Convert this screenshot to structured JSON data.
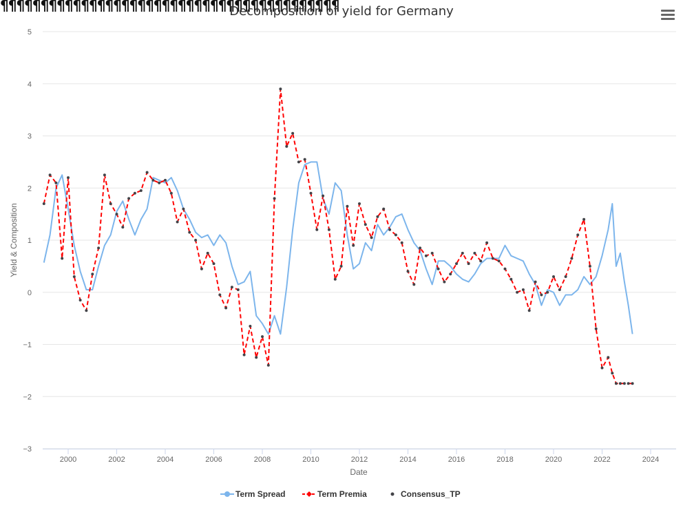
{
  "glyph_strip": "¶¶¶¶¶¶¶¶¶¶¶¶¶¶¶¶¶¶¶¶¶¶¶¶¶¶¶¶¶¶¶¶¶¶¶¶¶¶¶¶¶¶",
  "menu": {
    "icon": "hamburger-menu-icon"
  },
  "colors": {
    "term_spread": "#7cb5ec",
    "term_premia": "#ff0000",
    "consensus": "#434348",
    "grid": "#e6e6e6"
  },
  "chart_data": {
    "type": "line",
    "title": "Decomposition of yield for Germany",
    "xlabel": "Date",
    "ylabel": "Yield & Composition",
    "xlim": [
      1998.95,
      2025.05
    ],
    "ylim": [
      -3,
      5
    ],
    "x_ticks": [
      "2000",
      "2002",
      "2004",
      "2006",
      "2008",
      "2010",
      "2012",
      "2014",
      "2016",
      "2018",
      "2020",
      "2022",
      "2024"
    ],
    "y_ticks": [
      "−3",
      "−2",
      "−1",
      "0",
      "1",
      "2",
      "3",
      "4",
      "5"
    ],
    "grid": true,
    "legend_position": "bottom-center",
    "series": [
      {
        "name": "Term Spread",
        "style": "solid",
        "x": [
          1999.0,
          1999.25,
          1999.5,
          1999.75,
          2000.0,
          2000.25,
          2000.5,
          2000.75,
          2001.0,
          2001.25,
          2001.5,
          2001.75,
          2002.0,
          2002.25,
          2002.5,
          2002.75,
          2003.0,
          2003.25,
          2003.5,
          2003.75,
          2004.0,
          2004.25,
          2004.5,
          2004.75,
          2005.0,
          2005.25,
          2005.5,
          2005.75,
          2006.0,
          2006.25,
          2006.5,
          2006.75,
          2007.0,
          2007.25,
          2007.5,
          2007.75,
          2008.0,
          2008.25,
          2008.5,
          2008.75,
          2009.0,
          2009.25,
          2009.5,
          2009.75,
          2010.0,
          2010.25,
          2010.5,
          2010.75,
          2011.0,
          2011.25,
          2011.5,
          2011.75,
          2012.0,
          2012.25,
          2012.5,
          2012.75,
          2013.0,
          2013.25,
          2013.5,
          2013.75,
          2014.0,
          2014.25,
          2014.5,
          2014.75,
          2015.0,
          2015.25,
          2015.5,
          2015.75,
          2016.0,
          2016.25,
          2016.5,
          2016.75,
          2017.0,
          2017.25,
          2017.5,
          2017.75,
          2018.0,
          2018.25,
          2018.5,
          2018.75,
          2019.0,
          2019.25,
          2019.5,
          2019.75,
          2020.0,
          2020.25,
          2020.5,
          2020.75,
          2021.0,
          2021.25,
          2021.5,
          2021.75,
          2022.0,
          2022.25,
          2022.42,
          2022.58,
          2022.75,
          2022.92,
          2023.08,
          2023.25
        ],
        "values": [
          0.57,
          1.1,
          2.0,
          2.25,
          1.6,
          0.9,
          0.4,
          0.05,
          0.05,
          0.5,
          0.9,
          1.1,
          1.55,
          1.75,
          1.4,
          1.1,
          1.4,
          1.6,
          2.2,
          2.15,
          2.1,
          2.2,
          1.95,
          1.6,
          1.4,
          1.15,
          1.05,
          1.1,
          0.9,
          1.1,
          0.95,
          0.5,
          0.15,
          0.2,
          0.4,
          -0.45,
          -0.6,
          -0.8,
          -0.45,
          -0.8,
          0.1,
          1.2,
          2.1,
          2.45,
          2.5,
          2.5,
          1.8,
          1.5,
          2.1,
          1.95,
          1.1,
          0.45,
          0.55,
          0.95,
          0.8,
          1.3,
          1.1,
          1.25,
          1.45,
          1.5,
          1.2,
          0.95,
          0.8,
          0.45,
          0.15,
          0.6,
          0.6,
          0.5,
          0.35,
          0.25,
          0.2,
          0.35,
          0.55,
          0.65,
          0.65,
          0.65,
          0.9,
          0.7,
          0.65,
          0.6,
          0.35,
          0.15,
          -0.25,
          0.05,
          0.0,
          -0.25,
          -0.05,
          -0.05,
          0.05,
          0.3,
          0.15,
          0.3,
          0.7,
          1.2,
          1.7,
          0.5,
          0.75,
          0.2,
          -0.25,
          -0.8
        ]
      },
      {
        "name": "Term Premia",
        "style": "dashed",
        "x": [
          1999.0,
          1999.25,
          1999.5,
          1999.75,
          2000.0,
          2000.25,
          2000.5,
          2000.75,
          2001.0,
          2001.25,
          2001.5,
          2001.75,
          2002.0,
          2002.25,
          2002.5,
          2002.75,
          2003.0,
          2003.25,
          2003.5,
          2003.75,
          2004.0,
          2004.25,
          2004.5,
          2004.75,
          2005.0,
          2005.25,
          2005.5,
          2005.75,
          2006.0,
          2006.25,
          2006.5,
          2006.75,
          2007.0,
          2007.25,
          2007.5,
          2007.75,
          2008.0,
          2008.25,
          2008.5,
          2008.75,
          2009.0,
          2009.25,
          2009.5,
          2009.75,
          2010.0,
          2010.25,
          2010.5,
          2010.75,
          2011.0,
          2011.25,
          2011.5,
          2011.75,
          2012.0,
          2012.25,
          2012.5,
          2012.75,
          2013.0,
          2013.25,
          2013.5,
          2013.75,
          2014.0,
          2014.25,
          2014.5,
          2014.75,
          2015.0,
          2015.25,
          2015.5,
          2015.75,
          2016.0,
          2016.25,
          2016.5,
          2016.75,
          2017.0,
          2017.25,
          2017.5,
          2017.75,
          2018.0,
          2018.25,
          2018.5,
          2018.75,
          2019.0,
          2019.25,
          2019.5,
          2019.75,
          2020.0,
          2020.25,
          2020.5,
          2020.75,
          2021.0,
          2021.25,
          2021.5,
          2021.75,
          2022.0,
          2022.25,
          2022.42,
          2022.58,
          2022.75,
          2022.92,
          2023.08,
          2023.25
        ],
        "values": [
          1.7,
          2.25,
          2.1,
          0.65,
          2.2,
          0.3,
          -0.15,
          -0.35,
          0.35,
          0.85,
          2.25,
          1.7,
          1.5,
          1.25,
          1.8,
          1.9,
          1.95,
          2.3,
          2.15,
          2.1,
          2.15,
          1.9,
          1.35,
          1.6,
          1.15,
          1.0,
          0.45,
          0.75,
          0.55,
          -0.05,
          -0.3,
          0.1,
          0.05,
          -1.2,
          -0.65,
          -1.25,
          -0.85,
          -1.4,
          1.8,
          3.9,
          2.8,
          3.05,
          2.5,
          2.55,
          1.9,
          1.2,
          1.85,
          1.2,
          0.25,
          0.5,
          1.65,
          0.9,
          1.7,
          1.3,
          1.05,
          1.45,
          1.6,
          1.2,
          1.1,
          0.95,
          0.4,
          0.15,
          0.85,
          0.7,
          0.75,
          0.45,
          0.2,
          0.35,
          0.55,
          0.75,
          0.55,
          0.75,
          0.6,
          0.95,
          0.65,
          0.6,
          0.45,
          0.25,
          0.0,
          0.05,
          -0.35,
          0.2,
          -0.05,
          0.0,
          0.3,
          0.05,
          0.3,
          0.65,
          1.1,
          1.4,
          0.5,
          -0.7,
          -1.45,
          -1.25,
          -1.55,
          -1.75,
          -1.75,
          -1.75,
          -1.75,
          -1.75
        ]
      },
      {
        "name": "Consensus_TP",
        "style": "markers"
      }
    ]
  }
}
